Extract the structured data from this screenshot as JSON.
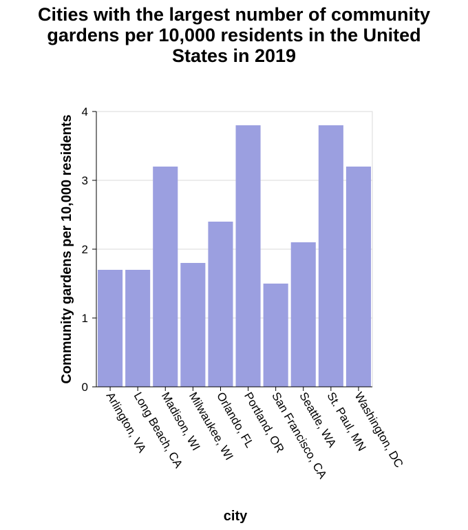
{
  "chart_data": {
    "type": "bar",
    "title_lines": [
      "Cities with the largest number of community",
      "gardens per 10,000 residents in the United",
      "States in 2019"
    ],
    "xlabel": "city",
    "ylabel": "Community gardens per 10,000 residents",
    "categories": [
      "Arlington, VA",
      "Long Beach, CA",
      "Madison, WI",
      "Milwaukee, WI",
      "Orlando, FL",
      "Portland, OR",
      "San Francisco, CA",
      "Seattle, WA",
      "St. Paul, MN",
      "Washington, DC"
    ],
    "values": [
      1.7,
      1.7,
      3.2,
      1.8,
      2.4,
      3.8,
      1.5,
      2.1,
      3.8,
      3.2
    ],
    "ylim": [
      0,
      4
    ],
    "yticks": [
      "0",
      "1",
      "2",
      "3",
      "4"
    ],
    "grid": true,
    "bar_color": "#9b9fe0",
    "grid_color": "#d9d9d9"
  }
}
